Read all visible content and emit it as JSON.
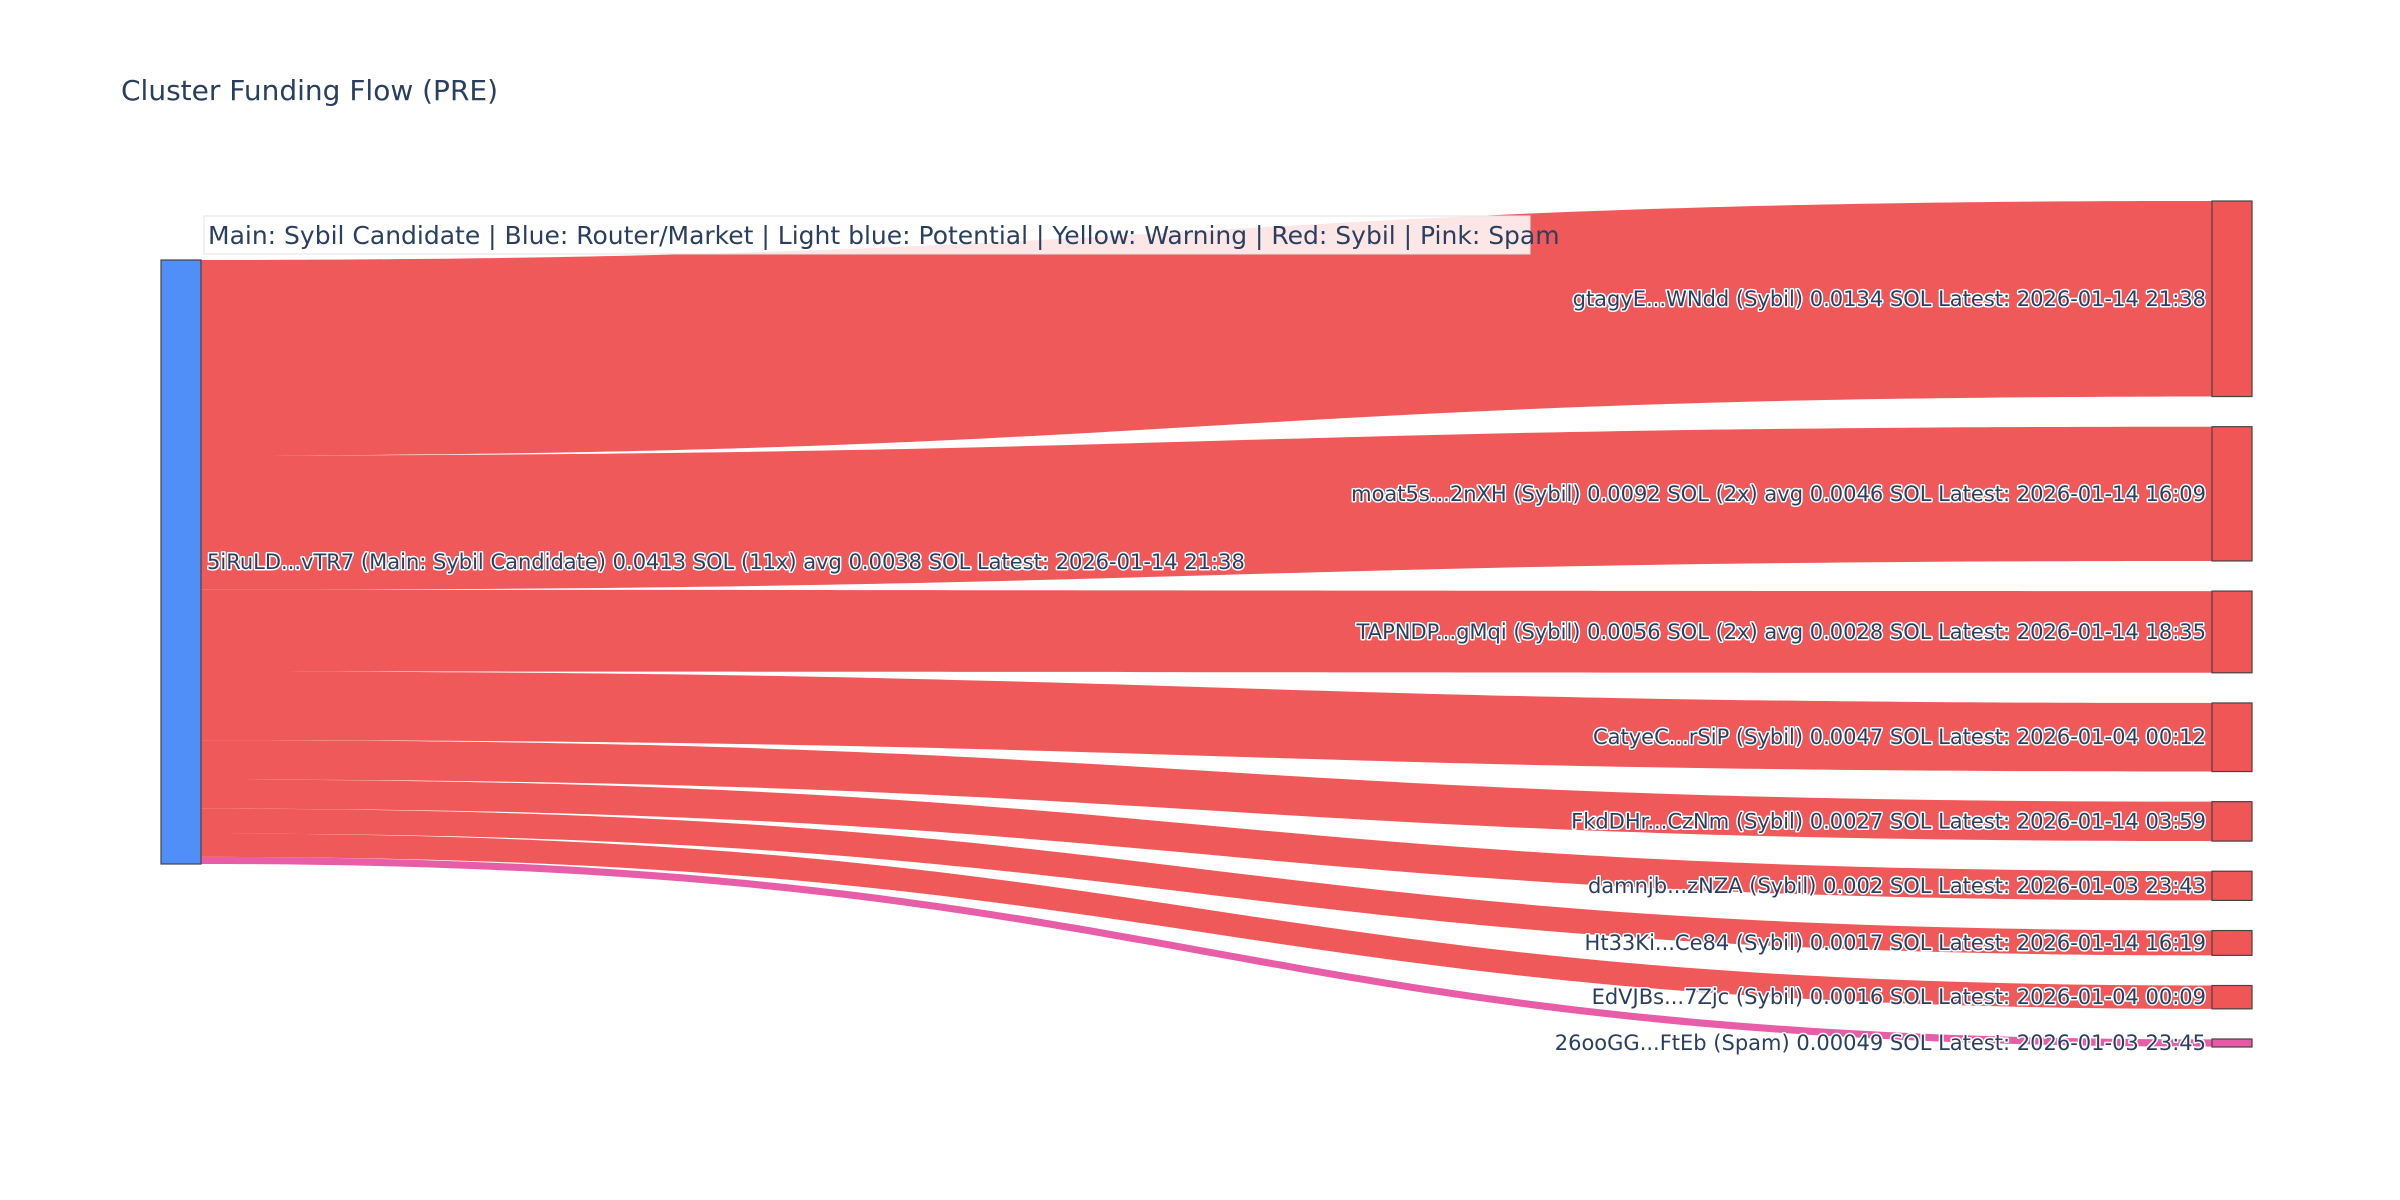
{
  "chart_data": {
    "type": "sankey",
    "title": "Cluster Funding Flow (PRE)",
    "legend_note": "Main: Sybil Candidate  |  Blue: Router/Market | Light blue: Potential | Yellow: Warning | Red: Sybil | Pink: Spam",
    "colors": {
      "main": "#4f8ff7",
      "sybil": "#f05656",
      "spam": "#e75aa5",
      "legend_bg": "#ffffff",
      "legend_border": "#e3e3e3"
    },
    "source": {
      "id": "main",
      "label": "5iRuLD...vTR7 (Main: Sybil Candidate) 0.0413 SOL (11x) avg 0.0038 SOL Latest: 2026-01-14 21:38",
      "value": 0.0413,
      "category": "main"
    },
    "targets": [
      {
        "id": "t1",
        "label": "gtagyE...WNdd (Sybil) 0.0134 SOL Latest: 2026-01-14 21:38",
        "value": 0.0134,
        "category": "sybil"
      },
      {
        "id": "t2",
        "label": "moat5s...2nXH (Sybil) 0.0092 SOL (2x) avg 0.0046 SOL Latest: 2026-01-14 16:09",
        "value": 0.0092,
        "category": "sybil"
      },
      {
        "id": "t3",
        "label": "TAPNDP...gMqi (Sybil) 0.0056 SOL (2x) avg 0.0028 SOL Latest: 2026-01-14 18:35",
        "value": 0.0056,
        "category": "sybil"
      },
      {
        "id": "t4",
        "label": "CatyeC...rSiP (Sybil) 0.0047 SOL Latest: 2026-01-04 00:12",
        "value": 0.0047,
        "category": "sybil"
      },
      {
        "id": "t5",
        "label": "FkdDHr...CzNm (Sybil) 0.0027 SOL Latest: 2026-01-14 03:59",
        "value": 0.0027,
        "category": "sybil"
      },
      {
        "id": "t6",
        "label": "damnjb...zNZA (Sybil) 0.002 SOL Latest: 2026-01-03 23:43",
        "value": 0.002,
        "category": "sybil"
      },
      {
        "id": "t7",
        "label": "Ht33Ki...Ce84 (Sybil) 0.0017 SOL Latest: 2026-01-14 16:19",
        "value": 0.0017,
        "category": "sybil"
      },
      {
        "id": "t8",
        "label": "EdVJBs...7Zjc (Sybil) 0.0016 SOL Latest: 2026-01-04 00:09",
        "value": 0.0016,
        "category": "sybil"
      },
      {
        "id": "t9",
        "label": "26ooGG...FtEb (Spam) 0.00049 SOL Latest: 2026-01-03 23:45",
        "value": 0.00049,
        "category": "spam"
      }
    ]
  }
}
